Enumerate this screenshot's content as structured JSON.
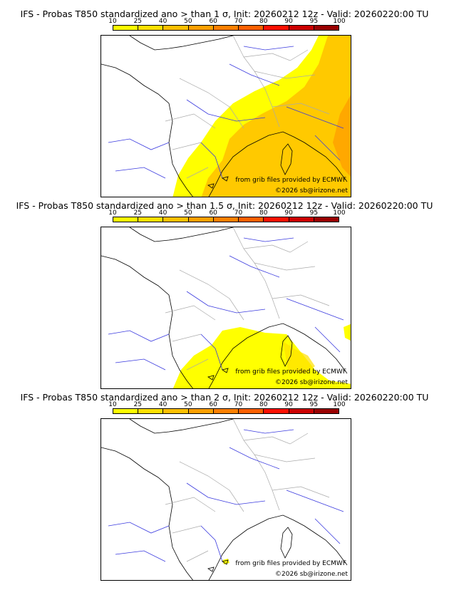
{
  "scale": {
    "labels": [
      "10",
      "25",
      "40",
      "50",
      "60",
      "70",
      "80",
      "90",
      "95",
      "100"
    ],
    "colors": [
      "#ffff00",
      "#ffe000",
      "#ffc000",
      "#ffa000",
      "#ff8000",
      "#ff6000",
      "#ff1000",
      "#cc0000",
      "#990000",
      "#660000"
    ]
  },
  "panels": [
    {
      "title": "IFS - Probas T850  standardized ano > than 1 σ, Init: 20260212 12z - Valid: 20260220:00 TU",
      "credit_source": "from grib files provided by ECMWF",
      "credit_copyright": "©2026 sb@irizone.net"
    },
    {
      "title": "IFS - Probas T850  standardized ano > than 1.5 σ, Init: 20260212 12z - Valid: 20260220:00 TU",
      "credit_source": "from grib files provided by ECMWF",
      "credit_copyright": "©2026 sb@irizone.net"
    },
    {
      "title": "IFS - Probas T850  standardized ano > than 2 σ, Init: 20260212 12z - Valid: 20260220:00 TU",
      "credit_source": "from grib files provided by ECMWF",
      "credit_copyright": "©2026 sb@irizone.net"
    }
  ]
}
